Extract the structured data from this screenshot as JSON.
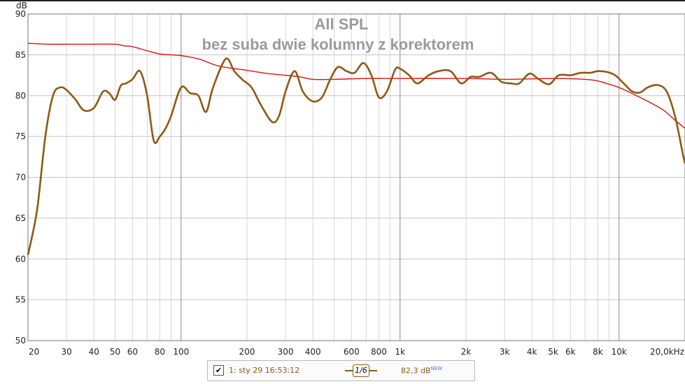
{
  "chart_data": {
    "type": "line",
    "title": "All SPL",
    "subtitle": "bez suba dwie kolumny z korektorem",
    "ylabel": "dB",
    "ylim": [
      50,
      90
    ],
    "xlim": [
      20,
      20000
    ],
    "xscale": "log",
    "grid": true,
    "y_ticks": [
      "50",
      "55",
      "60",
      "65",
      "70",
      "75",
      "80",
      "85",
      "90"
    ],
    "x_ticks": [
      {
        "v": 20,
        "label": "20"
      },
      {
        "v": 30,
        "label": "30"
      },
      {
        "v": 40,
        "label": "40"
      },
      {
        "v": 50,
        "label": "50"
      },
      {
        "v": 60,
        "label": "60"
      },
      {
        "v": 80,
        "label": "80"
      },
      {
        "v": 100,
        "label": "100"
      },
      {
        "v": 200,
        "label": "200"
      },
      {
        "v": 300,
        "label": "300"
      },
      {
        "v": 400,
        "label": "400"
      },
      {
        "v": 600,
        "label": "600"
      },
      {
        "v": 800,
        "label": "800"
      },
      {
        "v": 1000,
        "label": "1k"
      },
      {
        "v": 2000,
        "label": "2k"
      },
      {
        "v": 3000,
        "label": "3k"
      },
      {
        "v": 4000,
        "label": "4k"
      },
      {
        "v": 5000,
        "label": "5k"
      },
      {
        "v": 6000,
        "label": "6k"
      },
      {
        "v": 8000,
        "label": "8k"
      },
      {
        "v": 10000,
        "label": "10k"
      },
      {
        "v": 20000,
        "label": "20,0kHz"
      }
    ],
    "series": [
      {
        "color": "#8b5a14",
        "x": [
          20,
          22,
          24,
          26,
          28,
          30,
          33,
          36,
          40,
          44,
          47,
          50,
          53,
          56,
          60,
          65,
          70,
          75,
          80,
          85,
          90,
          100,
          110,
          120,
          130,
          140,
          160,
          175,
          190,
          210,
          230,
          260,
          280,
          300,
          330,
          360,
          400,
          440,
          480,
          520,
          570,
          620,
          680,
          740,
          800,
          870,
          950,
          1000,
          1100,
          1200,
          1350,
          1500,
          1700,
          1900,
          2100,
          2300,
          2600,
          2900,
          3200,
          3500,
          3900,
          4300,
          4800,
          5300,
          6000,
          6700,
          7400,
          8000,
          8800,
          9600,
          10500,
          11500,
          12500,
          13500,
          15000,
          16500,
          18000,
          19500,
          20000
        ],
        "values": [
          60.5,
          66,
          75,
          80,
          81,
          80.7,
          79.5,
          78.2,
          78.5,
          80.5,
          80.3,
          79.5,
          81.2,
          81.5,
          82,
          83,
          80,
          74.5,
          75,
          76,
          77.5,
          81,
          80.3,
          80,
          78,
          81,
          84.5,
          83,
          82,
          81,
          79,
          76.8,
          77.5,
          80.5,
          83,
          80.5,
          79.3,
          79.8,
          82,
          83.5,
          83,
          82.8,
          84,
          82.5,
          79.8,
          80.5,
          83.2,
          83.3,
          82.5,
          81.5,
          82.5,
          83,
          83,
          81.5,
          82.3,
          82.3,
          82.8,
          81.7,
          81.5,
          81.5,
          82.7,
          82,
          81.4,
          82.5,
          82.5,
          82.8,
          82.8,
          83,
          82.9,
          82.5,
          81.5,
          80.5,
          80.4,
          81,
          81.3,
          80.5,
          77.5,
          73,
          71.7
        ]
      },
      {
        "color": "#e01010",
        "x": [
          20,
          25,
          30,
          40,
          50,
          55,
          60,
          70,
          80,
          90,
          100,
          120,
          150,
          200,
          250,
          300,
          350,
          400,
          500,
          700,
          1000,
          2000,
          3000,
          5000,
          7000,
          8000,
          9000,
          10000,
          11000,
          12000,
          14000,
          16000,
          18000,
          20000
        ],
        "values": [
          86.4,
          86.3,
          86.3,
          86.3,
          86.3,
          86.1,
          86,
          85.5,
          85.1,
          85,
          84.9,
          84.5,
          83.6,
          83.1,
          82.7,
          82.5,
          82.3,
          82,
          82,
          82.1,
          82.1,
          82.1,
          82,
          82.1,
          82,
          81.8,
          81.4,
          81,
          80.5,
          80,
          79.1,
          78.2,
          77,
          76
        ]
      }
    ],
    "legend": {
      "label": "1: sty 29 16:53:12",
      "smoothing": "1/6",
      "level": "82,3 dB",
      "level_badge": "NEW"
    }
  }
}
